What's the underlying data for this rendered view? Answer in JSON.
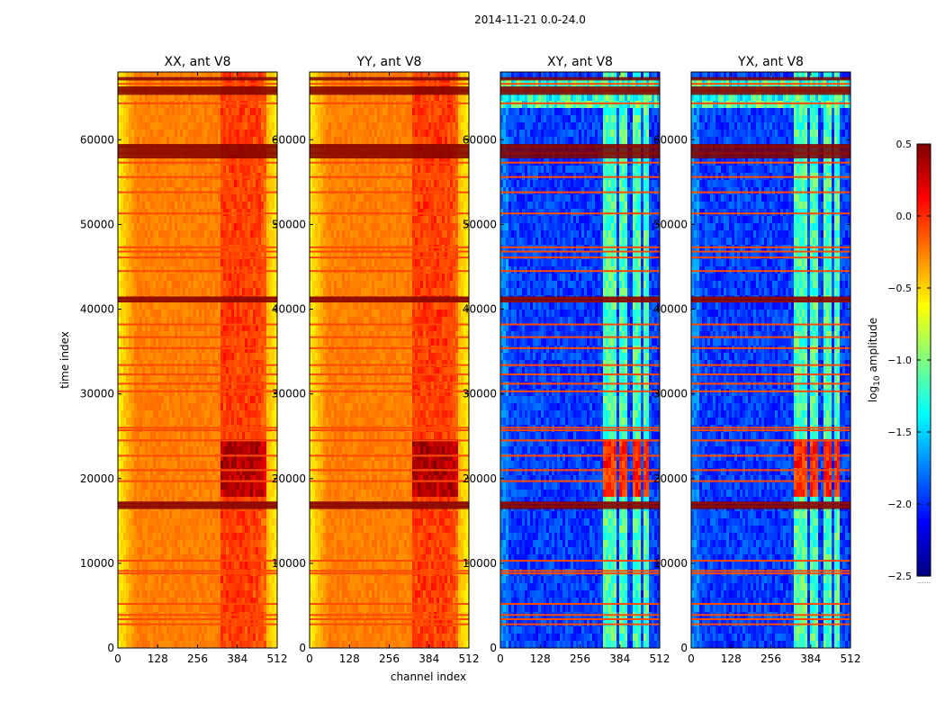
{
  "figure_title": "2014-11-21 0.0-24.0",
  "colors": {
    "jet": [
      "#00007f",
      "#0000ff",
      "#007fff",
      "#00ffff",
      "#7fff7f",
      "#ffff00",
      "#ff7f00",
      "#ff0000",
      "#7f0000"
    ],
    "flag_line": "#ff4a00",
    "flag_dark": "#7f0000",
    "panel_border": "#000000"
  },
  "chart_data": [
    {
      "type": "heatmap",
      "title": "XX, ant V8",
      "style": "parallel",
      "xlabel": "",
      "ylabel": "time index",
      "xlim": [
        0,
        512
      ],
      "ylim": [
        0,
        68000
      ],
      "xticks": [
        0,
        128,
        256,
        384,
        512
      ],
      "xtick_labels": [
        "0",
        "128",
        "256",
        "384",
        "512"
      ],
      "yticks": [
        0,
        10000,
        20000,
        30000,
        40000,
        50000,
        60000
      ],
      "ytick_labels": [
        "0",
        "10000",
        "20000",
        "30000",
        "40000",
        "50000",
        "60000"
      ]
    },
    {
      "type": "heatmap",
      "title": "YY, ant V8",
      "style": "parallel",
      "xlabel": "channel index",
      "ylabel": "",
      "xlim": [
        0,
        512
      ],
      "ylim": [
        0,
        68000
      ],
      "xticks": [
        0,
        128,
        256,
        384,
        512
      ],
      "xtick_labels": [
        "0",
        "128",
        "256",
        "384",
        "512"
      ],
      "yticks": [
        0,
        10000,
        20000,
        30000,
        40000,
        50000,
        60000
      ],
      "ytick_labels": [
        "0",
        "10000",
        "20000",
        "30000",
        "40000",
        "50000",
        "60000"
      ]
    },
    {
      "type": "heatmap",
      "title": "XY, ant V8",
      "style": "cross",
      "xlabel": "",
      "ylabel": "",
      "xlim": [
        0,
        512
      ],
      "ylim": [
        0,
        68000
      ],
      "xticks": [
        0,
        128,
        256,
        384,
        512
      ],
      "xtick_labels": [
        "0",
        "128",
        "256",
        "384",
        "512"
      ],
      "yticks": [
        0,
        10000,
        20000,
        30000,
        40000,
        50000,
        60000
      ],
      "ytick_labels": [
        "0",
        "10000",
        "20000",
        "30000",
        "40000",
        "50000",
        "60000"
      ]
    },
    {
      "type": "heatmap",
      "title": "YX, ant V8",
      "style": "cross",
      "xlabel": "",
      "ylabel": "",
      "xlim": [
        0,
        512
      ],
      "ylim": [
        0,
        68000
      ],
      "xticks": [
        0,
        128,
        256,
        384,
        512
      ],
      "xtick_labels": [
        "0",
        "128",
        "256",
        "384",
        "512"
      ],
      "yticks": [
        0,
        10000,
        20000,
        30000,
        40000,
        50000,
        60000
      ],
      "ytick_labels": [
        "0",
        "10000",
        "20000",
        "30000",
        "40000",
        "50000",
        "60000"
      ]
    }
  ],
  "colorbar": {
    "label_prefix": "log",
    "label_sub": "10",
    "label_suffix": " amplitude",
    "vmin": -2.5,
    "vmax": 0.5,
    "ticks": [
      0.5,
      0.0,
      -0.5,
      -1.0,
      -1.5,
      -2.0,
      -2.5
    ],
    "tick_labels": [
      "0.5",
      "0.0",
      "−0.5",
      "−1.0",
      "−1.5",
      "−2.0",
      "−2.5"
    ],
    "extra_label": "......"
  },
  "flag_lines_time_index": [
    2800,
    3400,
    3900,
    5200,
    8800,
    9100,
    10300,
    16700,
    17100,
    19700,
    21000,
    22700,
    24500,
    25700,
    26000,
    30300,
    31200,
    32300,
    33400,
    35400,
    36700,
    38200,
    40900,
    41300,
    44500,
    46100,
    46800,
    47300,
    51300,
    53800,
    55600,
    57300,
    58400,
    59200,
    64300,
    65800,
    66600
  ]
}
